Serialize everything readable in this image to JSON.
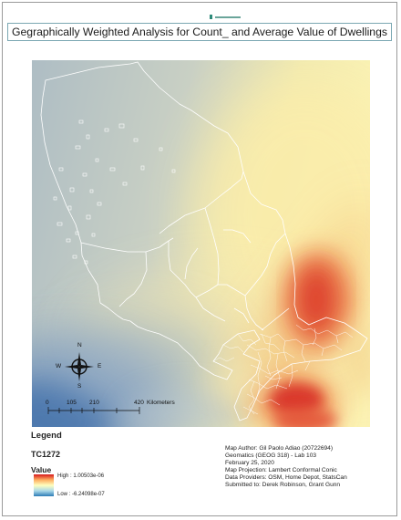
{
  "title": "Gegraphically Weighted Analysis for Count_ and Average Value of Dwellings",
  "scale_bar": {
    "ticks": [
      "0",
      "105",
      "210",
      "420"
    ],
    "unit": "Kilometers"
  },
  "north_arrow": {
    "n": "N",
    "s": "S",
    "e": "E",
    "w": "W"
  },
  "legend": {
    "title": "Legend",
    "layer": "TC1272",
    "field": "Value",
    "high": "High : 1.00503e-06",
    "low": "Low : -6.24098e-07",
    "ramp_colors": [
      "#d7191c",
      "#fdae61",
      "#ffffbf",
      "#abd9e9",
      "#2c7bb6"
    ]
  },
  "metadata": {
    "lines": [
      "Map Author: Gil Paolo Adiao (20722694)",
      "Geomatics (GEOG 318) - Lab 103",
      "February 25, 2020",
      "Map Projection: Lambert Conformal Conic",
      "Data Providers: OSM, Home Depot, StatsCan",
      "Submitted to: Derek Robinson, Grant Gunn"
    ]
  },
  "colors": {
    "title_border": "#7aa7b2",
    "boundary_lines": "#ffffff"
  }
}
